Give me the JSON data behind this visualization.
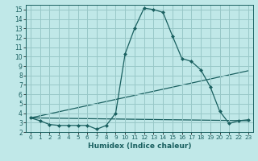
{
  "xlabel": "Humidex (Indice chaleur)",
  "background_color": "#c0e8e8",
  "grid_color": "#98c8c8",
  "line_color": "#1a6060",
  "xlim": [
    -0.5,
    23.5
  ],
  "ylim": [
    2,
    15.5
  ],
  "xticks": [
    0,
    1,
    2,
    3,
    4,
    5,
    6,
    7,
    8,
    9,
    10,
    11,
    12,
    13,
    14,
    15,
    16,
    17,
    18,
    19,
    20,
    21,
    22,
    23
  ],
  "yticks": [
    2,
    3,
    4,
    5,
    6,
    7,
    8,
    9,
    10,
    11,
    12,
    13,
    14,
    15
  ],
  "series1_x": [
    0,
    1,
    2,
    3,
    4,
    5,
    6,
    7,
    8,
    9,
    10,
    11,
    12,
    13,
    14,
    15,
    16,
    17,
    18,
    19,
    20,
    21,
    22,
    23
  ],
  "series1_y": [
    3.5,
    3.2,
    2.8,
    2.7,
    2.7,
    2.7,
    2.7,
    2.3,
    2.7,
    4.0,
    10.3,
    13.0,
    15.15,
    15.0,
    14.7,
    12.2,
    9.8,
    9.5,
    8.6,
    6.8,
    4.2,
    2.9,
    3.2,
    3.3
  ],
  "series2_x": [
    0,
    23
  ],
  "series2_y": [
    3.5,
    8.5
  ],
  "series3_x": [
    0,
    23
  ],
  "series3_y": [
    3.5,
    3.2
  ]
}
